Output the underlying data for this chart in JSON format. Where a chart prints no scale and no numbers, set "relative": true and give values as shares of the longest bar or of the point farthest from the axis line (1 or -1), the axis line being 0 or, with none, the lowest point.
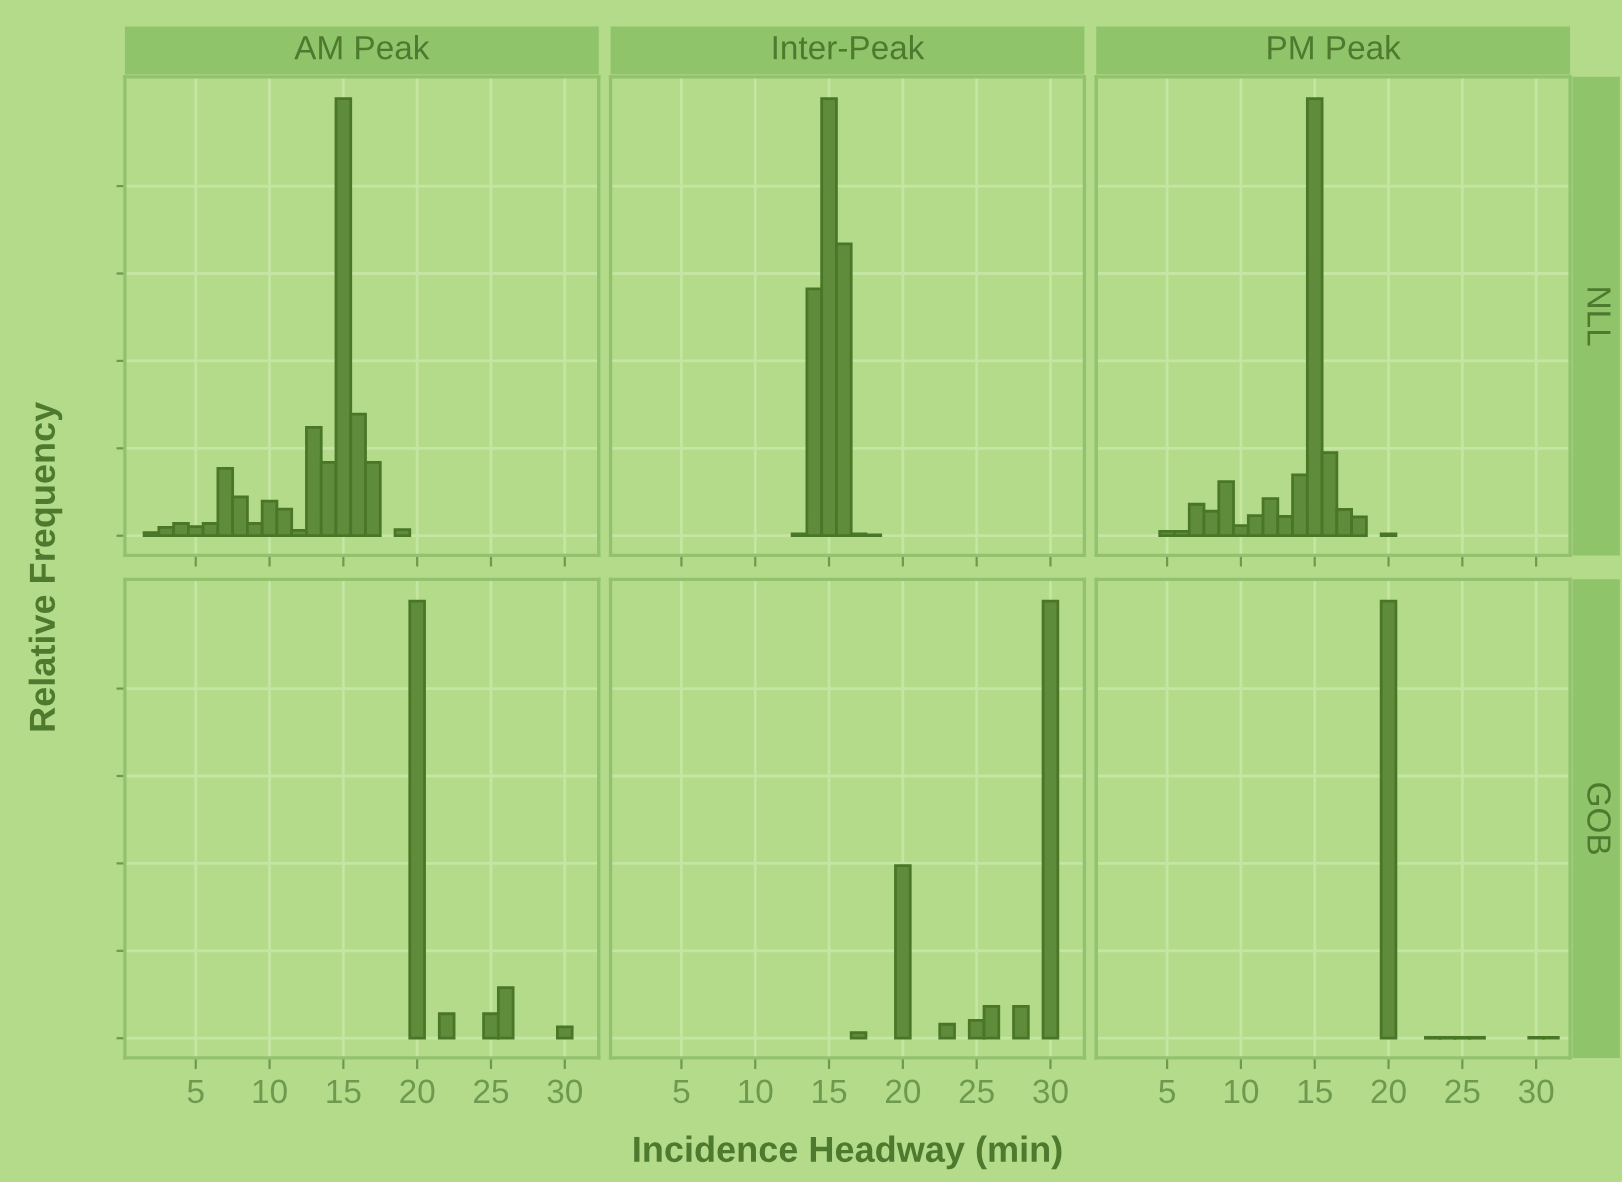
{
  "chart_data": [
    {
      "type": "bar",
      "title": "AM Peak",
      "ylabel": "Relative Frequency",
      "relative": true,
      "color": "#5f8c3a",
      "x": [
        2,
        3,
        4,
        5,
        6,
        7,
        8,
        9,
        10,
        11,
        12,
        13,
        14,
        15,
        16,
        17,
        19
      ],
      "values": [
        0.007,
        0.019,
        0.028,
        0.021,
        0.028,
        0.154,
        0.089,
        0.028,
        0.079,
        0.061,
        0.012,
        0.248,
        0.168,
        1.0,
        0.278,
        0.168,
        0.014
      ],
      "xlim": [
        0.2,
        32.3
      ],
      "xticks": [
        5,
        10,
        15,
        20,
        25,
        30
      ],
      "grid": true,
      "tick_labels": false
    },
    {
      "type": "bar",
      "title": "Inter-Peak",
      "relative": true,
      "color": "#5f8c3a",
      "x": [
        13,
        14,
        15,
        16,
        17,
        18
      ],
      "values": [
        0.004,
        0.565,
        1.0,
        0.668,
        0.004,
        0.002
      ],
      "xlim": [
        0.2,
        32.3
      ],
      "xticks": [
        5,
        10,
        15,
        20,
        25,
        30
      ],
      "grid": true,
      "tick_labels": false
    },
    {
      "type": "bar",
      "title": "PM Peak",
      "y2label": "NLL",
      "relative": true,
      "color": "#5f8c3a",
      "x": [
        5,
        6,
        7,
        8,
        9,
        10,
        11,
        12,
        13,
        14,
        15,
        16,
        17,
        18,
        20
      ],
      "values": [
        0.01,
        0.01,
        0.072,
        0.056,
        0.124,
        0.023,
        0.046,
        0.085,
        0.044,
        0.139,
        1.0,
        0.19,
        0.06,
        0.043,
        0.004
      ],
      "xlim": [
        0.2,
        32.3
      ],
      "xticks": [
        5,
        10,
        15,
        20,
        25,
        30
      ],
      "grid": true,
      "tick_labels": false
    },
    {
      "type": "bar",
      "relative": true,
      "color": "#5f8c3a",
      "x": [
        20,
        22,
        25,
        26,
        30
      ],
      "values": [
        1.0,
        0.056,
        0.056,
        0.116,
        0.026
      ],
      "xlim": [
        0.2,
        32.3
      ],
      "xticks": [
        5,
        10,
        15,
        20,
        25,
        30
      ],
      "grid": true,
      "tick_labels": "x"
    },
    {
      "type": "bar",
      "xlabel": "Incidence Headway (min)",
      "relative": true,
      "color": "#5f8c3a",
      "x": [
        17,
        20,
        23,
        25,
        26,
        28,
        30
      ],
      "values": [
        0.013,
        0.395,
        0.032,
        0.041,
        0.073,
        0.073,
        1.0
      ],
      "xlim": [
        0.2,
        32.3
      ],
      "xticks": [
        5,
        10,
        15,
        20,
        25,
        30
      ],
      "grid": true,
      "tick_labels": "x"
    },
    {
      "type": "bar",
      "y2label": "GOB",
      "relative": true,
      "color": "#5f8c3a",
      "x": [
        20,
        23,
        24,
        25,
        26,
        30,
        31
      ],
      "values": [
        1.0,
        0.002,
        0.002,
        0.002,
        0.002,
        0.002,
        0.002
      ],
      "xlim": [
        0.2,
        32.3
      ],
      "xticks": [
        5,
        10,
        15,
        20,
        25,
        30
      ],
      "grid": true,
      "tick_labels": "x"
    }
  ]
}
